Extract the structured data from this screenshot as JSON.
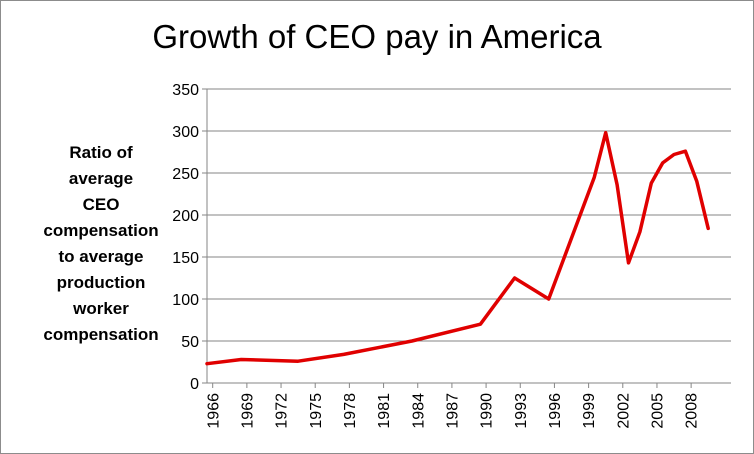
{
  "chart_data": {
    "type": "line",
    "title": "Growth of CEO pay in America",
    "ylabel": "Ratio of\naverage\nCEO\ncompensation\nto average\nproduction\nworker\ncompensation",
    "xlabel": "",
    "ylim": [
      0,
      350
    ],
    "yticks": [
      0,
      50,
      100,
      150,
      200,
      250,
      300,
      350
    ],
    "xlim": [
      1965.5,
      2011.5
    ],
    "xticks": [
      "1966",
      "1969",
      "1972",
      "1975",
      "1978",
      "1981",
      "1984",
      "1987",
      "1990",
      "1993",
      "1996",
      "1999",
      "2002",
      "2005",
      "2008"
    ],
    "grid": "horizontal",
    "legend": "none",
    "series": [
      {
        "color": "#e00000",
        "points": [
          [
            1965.5,
            23
          ],
          [
            1968.5,
            28
          ],
          [
            1973.5,
            26
          ],
          [
            1977.5,
            34
          ],
          [
            1983.5,
            50
          ],
          [
            1989.5,
            70
          ],
          [
            1992.5,
            125
          ],
          [
            1995.5,
            100
          ],
          [
            1999.5,
            245
          ],
          [
            2000.5,
            298
          ],
          [
            2001.5,
            236
          ],
          [
            2002.5,
            143
          ],
          [
            2003.5,
            180
          ],
          [
            2004.5,
            238
          ],
          [
            2005.5,
            262
          ],
          [
            2006.5,
            272
          ],
          [
            2007.5,
            276
          ],
          [
            2008.5,
            240
          ],
          [
            2009.5,
            184
          ]
        ]
      }
    ]
  }
}
